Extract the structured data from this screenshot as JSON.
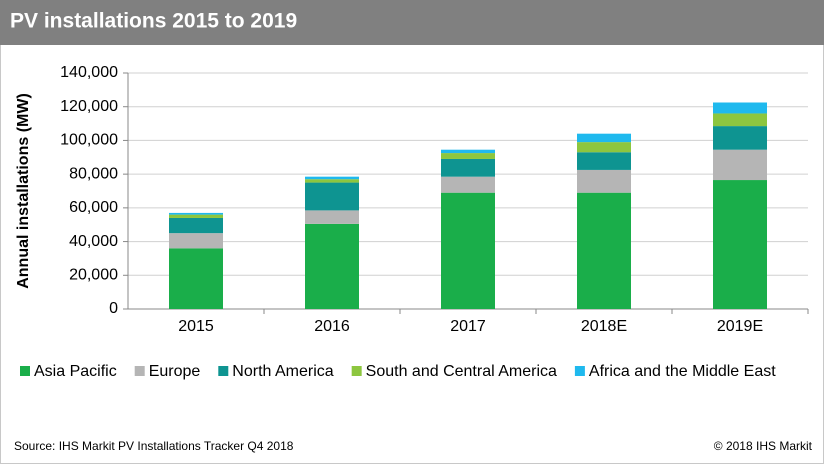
{
  "chart_data": {
    "type": "stacked_bar",
    "title": "PV installations 2015 to 2019",
    "y_label": "Annual installations (MW)",
    "categories": [
      "2015",
      "2016",
      "2017",
      "2018E",
      "2019E"
    ],
    "series": [
      {
        "name": "Asia Pacific",
        "color": "#1aae4a",
        "values": [
          36000,
          50500,
          69000,
          69000,
          76500
        ]
      },
      {
        "name": "Europe",
        "color": "#b5b5b5",
        "values": [
          9000,
          8000,
          9500,
          13500,
          18000
        ]
      },
      {
        "name": "North America",
        "color": "#0e9491",
        "values": [
          9000,
          16500,
          10500,
          10500,
          14000
        ]
      },
      {
        "name": "South and Central America",
        "color": "#8dc63f",
        "values": [
          2000,
          2000,
          3500,
          6000,
          7500
        ]
      },
      {
        "name": "Africa and the Middle East",
        "color": "#1fb9ee",
        "values": [
          1000,
          1500,
          2000,
          5000,
          6500
        ]
      }
    ],
    "ylim": [
      0,
      140000
    ],
    "yticks": [
      0,
      {
        "value": 20000,
        "label": "20,000"
      },
      {
        "value": 40000,
        "label": "40,000"
      },
      {
        "value": 60000,
        "label": "60,000"
      },
      {
        "value": 80000,
        "label": "80,000"
      },
      {
        "value": 100000,
        "label": "100,000"
      },
      {
        "value": 120000,
        "label": "120,000"
      },
      {
        "value": 140000,
        "label": "140,000"
      }
    ],
    "grid": true,
    "source": "Source: IHS Markit PV Installations Tracker Q4 2018",
    "copyright": "© 2018 IHS Markit"
  }
}
